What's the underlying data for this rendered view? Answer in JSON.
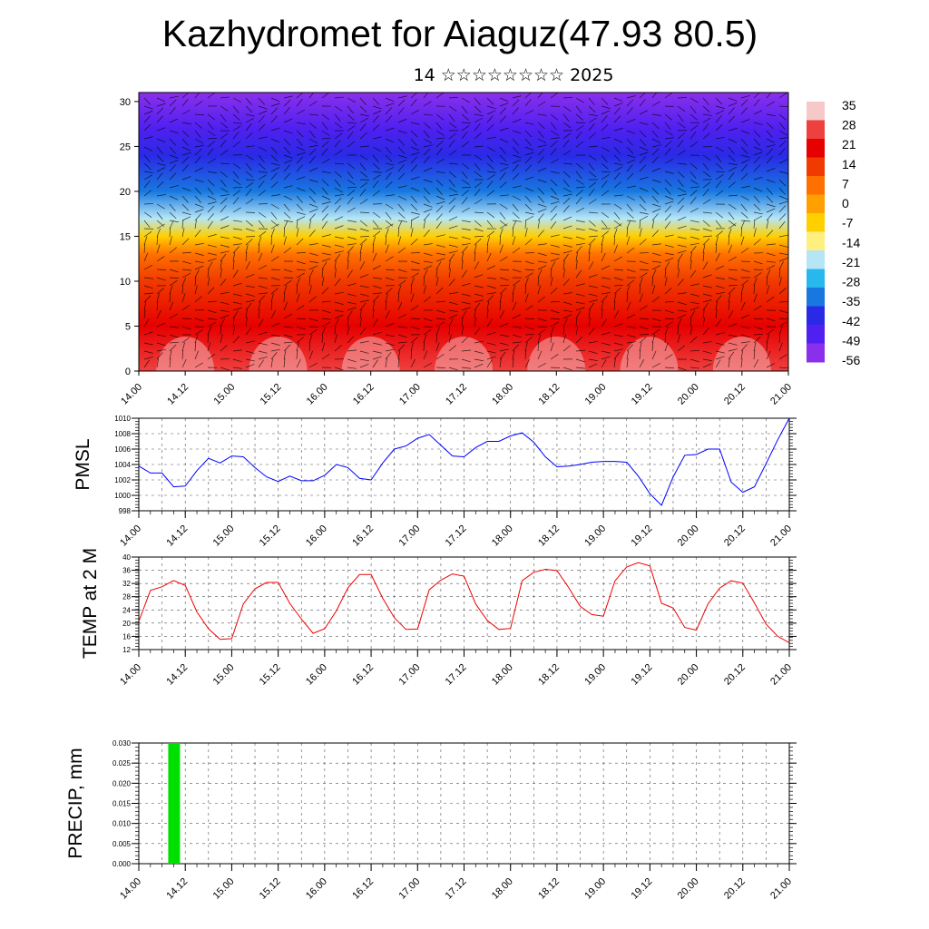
{
  "header": {
    "title": "Kazhydromet for Aiaguz(47.93 80.5)",
    "subtitle": "14 ☆☆☆☆☆☆☆☆ 2025"
  },
  "time_labels": [
    "14.00",
    "14.12",
    "15.00",
    "15.12",
    "16.00",
    "16.12",
    "17.00",
    "17.12",
    "18.00",
    "18.12",
    "19.00",
    "19.12",
    "20.00",
    "20.12",
    "21.00"
  ],
  "colors": {
    "pmsl_line": "#0000ff",
    "temp_line": "#ee0000",
    "precip_bar": "#00e000",
    "grid": "#000000"
  },
  "chart_data": [
    {
      "type": "heatmap",
      "description_role": "vertical cross-section with wind barbs",
      "y_ticks": [
        0,
        5,
        10,
        15,
        20,
        25,
        30
      ],
      "ylim": [
        0,
        31
      ],
      "x_labels_ref": "time_labels",
      "colorbar": {
        "labels": [
          "35",
          "28",
          "21",
          "14",
          "7",
          "0",
          "-7",
          "-14",
          "-21",
          "-28",
          "-35",
          "-42",
          "-49",
          "-56"
        ],
        "colors": [
          "#f6c8c8",
          "#ef4040",
          "#e60000",
          "#f03a00",
          "#ff7000",
          "#ffa000",
          "#ffd000",
          "#ffef80",
          "#b6e6f6",
          "#28b8ee",
          "#1878e0",
          "#2a2ae6",
          "#5020f0",
          "#8a30ec"
        ]
      },
      "bands": [
        {
          "level": 0,
          "temp": 30
        },
        {
          "level": 5,
          "temp": 22
        },
        {
          "level": 10,
          "temp": 14
        },
        {
          "level": 13,
          "temp": 6
        },
        {
          "level": 15,
          "temp": -6
        },
        {
          "level": 17,
          "temp": -20
        },
        {
          "level": 20,
          "temp": -32
        },
        {
          "level": 24,
          "temp": -45
        },
        {
          "level": 27,
          "temp": -52
        },
        {
          "level": 31,
          "temp": -56
        }
      ]
    },
    {
      "type": "line",
      "ylabel": "PMSL",
      "ylim": [
        998,
        1010
      ],
      "y_ticks": [
        998,
        1000,
        1002,
        1004,
        1006,
        1008,
        1010
      ],
      "x_labels_ref": "time_labels",
      "series": [
        {
          "x": [
            0,
            1,
            2,
            3,
            4,
            5,
            6,
            7,
            8,
            9,
            10,
            11,
            12,
            13,
            14,
            15,
            16,
            17,
            18,
            19,
            20,
            21,
            22,
            23,
            24,
            25,
            26,
            27,
            28,
            29,
            30,
            31,
            32,
            33,
            34,
            35,
            36,
            37,
            38,
            39,
            40,
            41,
            42,
            43,
            44,
            45,
            46,
            47,
            48,
            49,
            50,
            51,
            52,
            53,
            54,
            55,
            56
          ],
          "values": [
            1003.8,
            1002.9,
            1002.9,
            1001.1,
            1001.2,
            1003.2,
            1004.8,
            1004.2,
            1005.1,
            1005.0,
            1003.6,
            1002.4,
            1001.8,
            1002.5,
            1001.9,
            1001.9,
            1002.6,
            1004.0,
            1003.6,
            1002.2,
            1002.0,
            1004.2,
            1006.0,
            1006.4,
            1007.4,
            1007.9,
            1006.5,
            1005.1,
            1005.0,
            1006.2,
            1007.0,
            1007.0,
            1007.7,
            1008.1,
            1006.9,
            1005.0,
            1003.7,
            1003.8,
            1004.0,
            1004.3,
            1004.4,
            1004.4,
            1004.3,
            1002.5,
            1000.2,
            998.7,
            1002.4,
            1005.2,
            1005.3,
            1006.0,
            1006.0,
            1001.7,
            1000.4,
            1001.1,
            1004.1,
            1007.2,
            1010.0
          ]
        }
      ]
    },
    {
      "type": "line",
      "ylabel": "TEMP at 2 M",
      "ylim": [
        12,
        40
      ],
      "y_ticks": [
        12,
        16,
        20,
        24,
        28,
        32,
        36,
        40
      ],
      "x_labels_ref": "time_labels",
      "series": [
        {
          "x": [
            0,
            1,
            2,
            3,
            4,
            5,
            6,
            7,
            8,
            9,
            10,
            11,
            12,
            13,
            14,
            15,
            16,
            17,
            18,
            19,
            20,
            21,
            22,
            23,
            24,
            25,
            26,
            27,
            28,
            29,
            30,
            31,
            32,
            33,
            34,
            35,
            36,
            37,
            38,
            39,
            40,
            41,
            42,
            43,
            44,
            45,
            46,
            47,
            48,
            49,
            50,
            51,
            52,
            53,
            54,
            55,
            56
          ],
          "values": [
            20.5,
            29.9,
            31.0,
            32.9,
            31.4,
            23.4,
            18.3,
            15.1,
            15.3,
            25.8,
            30.4,
            32.3,
            32.3,
            26.0,
            21.2,
            16.9,
            18.3,
            23.7,
            30.7,
            34.7,
            34.7,
            27.5,
            21.6,
            18.1,
            18.2,
            30.1,
            33.0,
            34.9,
            34.2,
            25.8,
            20.8,
            18.1,
            18.4,
            32.8,
            35.4,
            36.3,
            35.9,
            30.8,
            25.1,
            22.6,
            22.1,
            32.8,
            37.0,
            38.3,
            37.3,
            26.0,
            24.6,
            18.7,
            17.9,
            25.8,
            30.6,
            32.8,
            32.1,
            26.1,
            19.7,
            16.0,
            14.1
          ]
        }
      ]
    },
    {
      "type": "bar",
      "ylabel": "PRECIP, mm",
      "ylim": [
        0,
        0.03
      ],
      "y_ticks": [
        "0.000",
        "0.005",
        "0.010",
        "0.015",
        "0.020",
        "0.025",
        "0.030"
      ],
      "x_labels_ref": "time_labels",
      "bars": [
        {
          "x": 1.5,
          "value": 0.03
        }
      ]
    }
  ]
}
